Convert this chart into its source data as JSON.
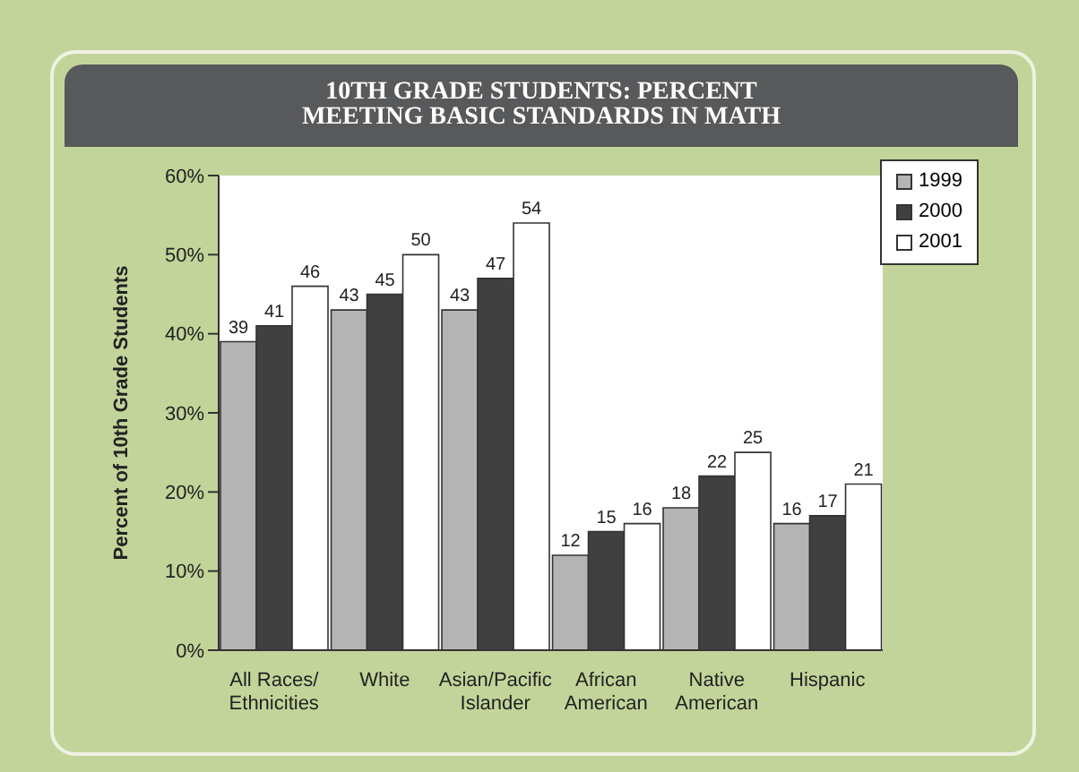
{
  "chart_data": {
    "type": "bar",
    "title": "10TH GRADE STUDENTS: PERCENT MEETING BASIC STANDARDS IN MATH",
    "ylabel": "Percent of 10th Grade Students",
    "categories": [
      "All Races/\nEthnicities",
      "White",
      "Asian/Pacific\nIslander",
      "African\nAmerican",
      "Native\nAmerican",
      "Hispanic"
    ],
    "series": [
      {
        "name": "1999",
        "color": "#b4b4b4",
        "values": [
          39,
          43,
          43,
          12,
          18,
          16
        ]
      },
      {
        "name": "2000",
        "color": "#404040",
        "values": [
          41,
          45,
          47,
          15,
          22,
          17
        ]
      },
      {
        "name": "2001",
        "color": "#ffffff",
        "values": [
          46,
          50,
          54,
          16,
          25,
          21
        ]
      }
    ],
    "ylim": [
      0,
      60
    ],
    "yticks": [
      {
        "value": 0,
        "label": "0%"
      },
      {
        "value": 10,
        "label": "10%"
      },
      {
        "value": 20,
        "label": "20%"
      },
      {
        "value": 30,
        "label": "30%"
      },
      {
        "value": 40,
        "label": "40%"
      },
      {
        "value": 50,
        "label": "50%"
      },
      {
        "value": 60,
        "label": "60%"
      }
    ],
    "data_labels": true,
    "legend": "top right",
    "grid": false
  }
}
